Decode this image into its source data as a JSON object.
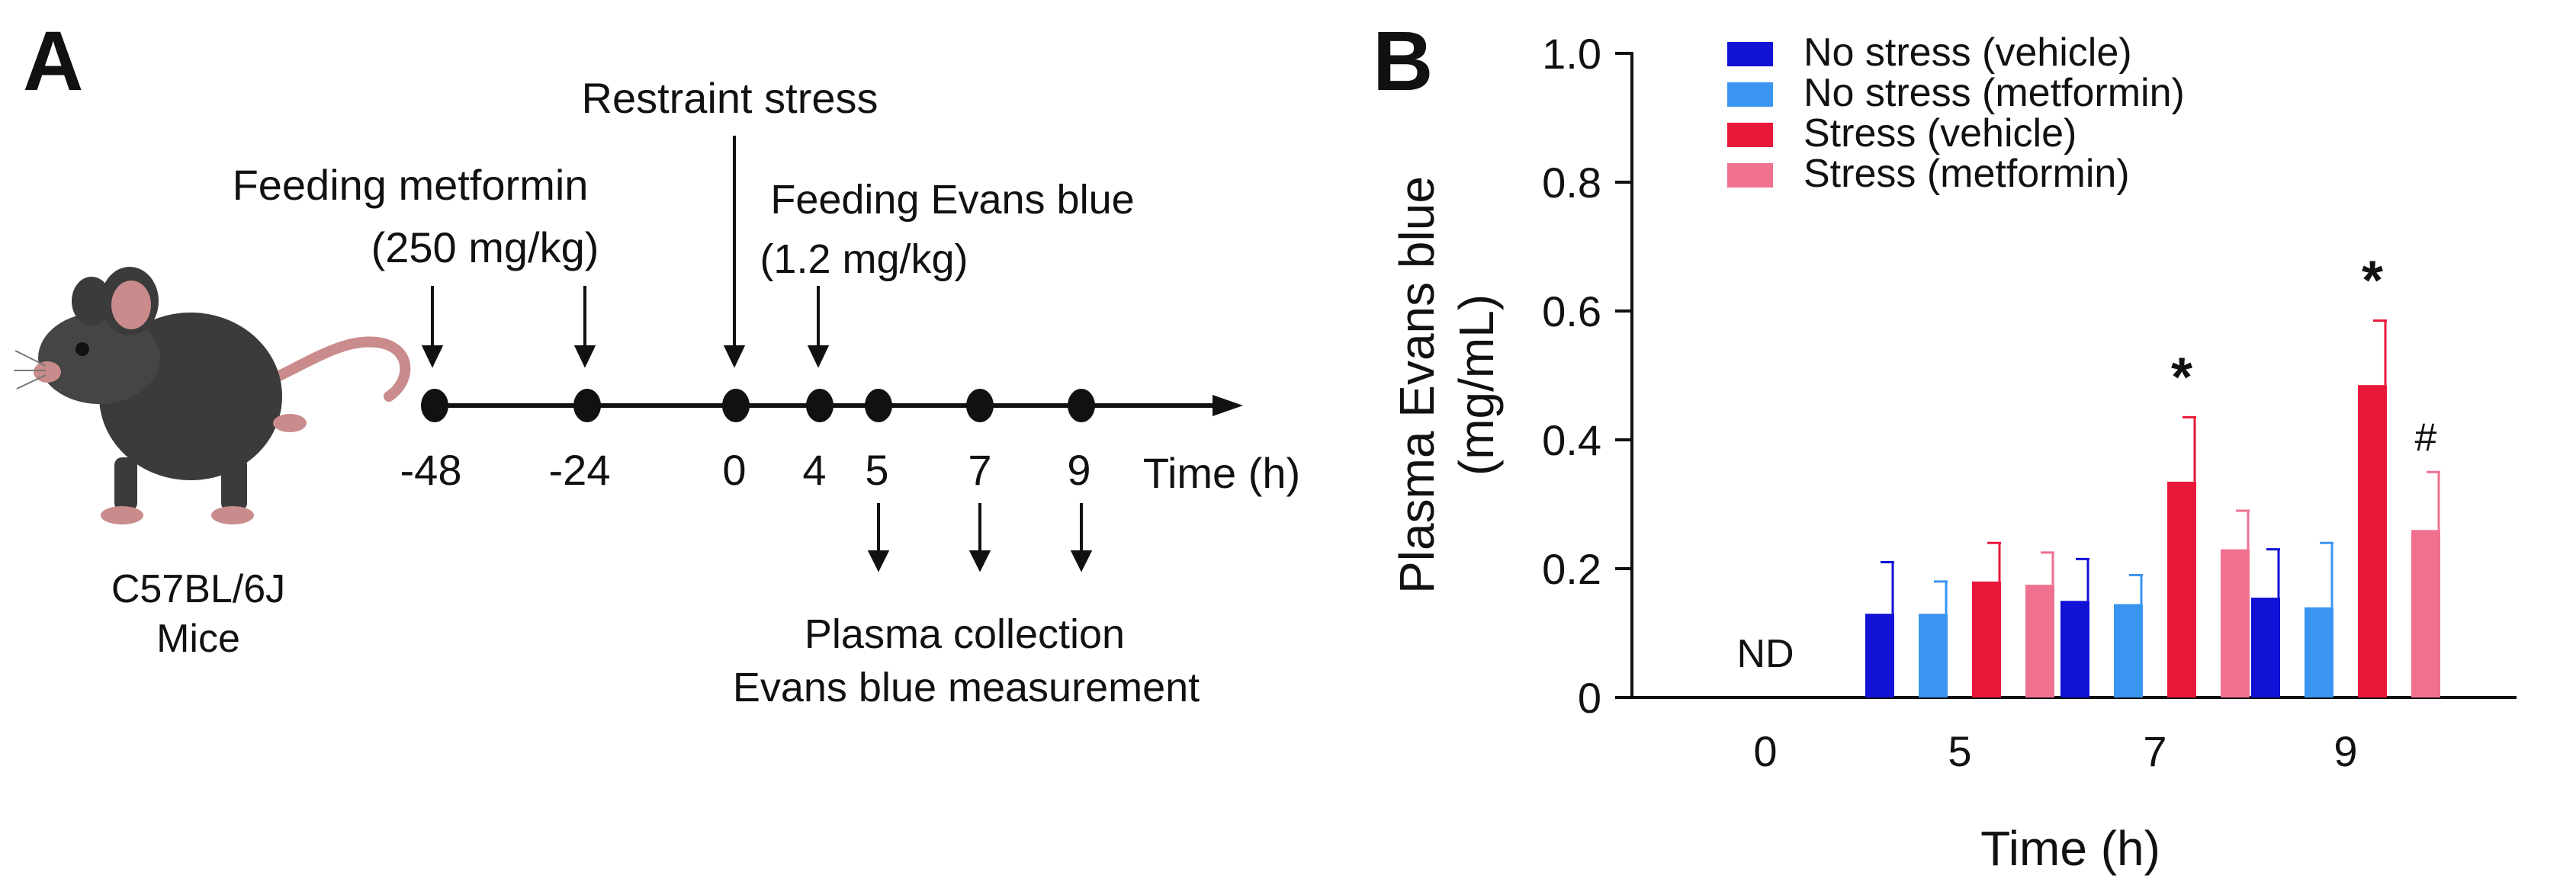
{
  "panel_a": {
    "label": "A",
    "restraint_stress": "Restraint stress",
    "feeding_metformin_line1": "Feeding metformin",
    "feeding_metformin_line2": "(250 mg/kg)",
    "feeding_evans_line1": "Feeding Evans blue",
    "feeding_evans_line2": "(1.2 mg/kg)",
    "timeline_ticks": [
      "-48",
      "-24",
      "0",
      "4",
      "5",
      "7",
      "9"
    ],
    "time_axis_label": "Time (h)",
    "plasma_line1": "Plasma collection",
    "plasma_line2": "Evans blue measurement",
    "mouse_line1": "C57BL/6J",
    "mouse_line2": "Mice"
  },
  "panel_b": {
    "label": "B",
    "nd_label": "ND"
  },
  "chart_data": {
    "type": "bar",
    "title": "",
    "xlabel": "Time (h)",
    "ylabel": "Plasma Evans blue",
    "ylabel_unit": "(mg/mL)",
    "categories": [
      "0",
      "5",
      "7",
      "9"
    ],
    "ylim": [
      0,
      1.0
    ],
    "yticks": [
      "0",
      "0.2",
      "0.4",
      "0.6",
      "0.8",
      "1.0"
    ],
    "ytick_values": [
      0,
      0.2,
      0.4,
      0.6,
      0.8,
      1.0
    ],
    "legend_position": "top-left",
    "series": [
      {
        "name": "No stress (vehicle)",
        "color": "#1212d6",
        "values": [
          null,
          0.13,
          0.15,
          0.155
        ],
        "errors": [
          null,
          0.08,
          0.065,
          0.075
        ]
      },
      {
        "name": "No stress (metformin)",
        "color": "#3a95f0",
        "values": [
          null,
          0.13,
          0.145,
          0.14
        ],
        "errors": [
          null,
          0.05,
          0.045,
          0.1
        ]
      },
      {
        "name": "Stress (vehicle)",
        "color": "#e8183a",
        "values": [
          null,
          0.18,
          0.335,
          0.485
        ],
        "errors": [
          null,
          0.06,
          0.1,
          0.1
        ]
      },
      {
        "name": "Stress (metformin)",
        "color": "#f07090",
        "values": [
          null,
          0.175,
          0.23,
          0.26
        ],
        "errors": [
          null,
          0.05,
          0.06,
          0.09
        ]
      }
    ],
    "annotations": [
      {
        "category": "7",
        "series": "Stress (vehicle)",
        "text": "*"
      },
      {
        "category": "9",
        "series": "Stress (vehicle)",
        "text": "*"
      },
      {
        "category": "9",
        "series": "Stress (metformin)",
        "text": "#"
      }
    ]
  }
}
